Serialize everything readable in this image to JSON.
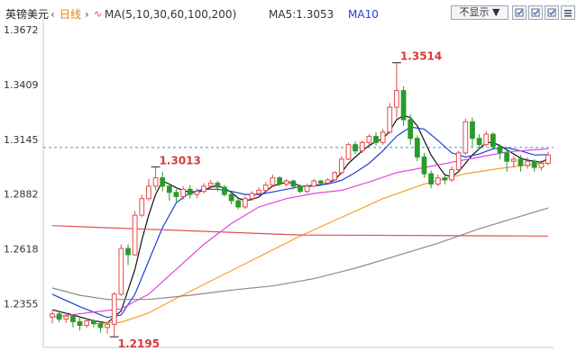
{
  "header": {
    "symbol": "英镑美元",
    "period": "日线",
    "ma_label": "MA(5,10,30,60,100,200)",
    "ma5_label": "MA5:1.3053",
    "ma10_label": "MA10",
    "display_toggle": "不显示",
    "colors": {
      "symbol": "#222222",
      "period": "#f08000",
      "ma": "#333333",
      "ma5": "#333333",
      "ma10": "#1f3fd6"
    },
    "icons": [
      "dropdown-arrow-icon",
      "checkbox-icon",
      "checkbox-icon",
      "checkbox-icon",
      "menu-icon"
    ]
  },
  "chart_data": {
    "type": "candlestick",
    "y_ticks": [
      "1.3672",
      "1.3409",
      "1.3145",
      "1.2882",
      "1.2618",
      "1.2355"
    ],
    "ylim": [
      1.2144,
      1.3738
    ],
    "reference_line": 1.3106,
    "annotations": [
      {
        "text": "1.3514",
        "value": 1.3514,
        "index": 50,
        "kind": "high"
      },
      {
        "text": "1.3013",
        "value": 1.3013,
        "index": 15,
        "kind": "high"
      },
      {
        "text": "1.2195",
        "value": 1.2195,
        "index": 9,
        "kind": "low"
      }
    ],
    "colors": {
      "up": "#e34b4b",
      "down": "#2a9a2a",
      "ref": "#4b8fe0",
      "annotation": "#d93a3a"
    },
    "candles": [
      [
        1.229,
        1.2305,
        1.226,
        1.232
      ],
      [
        1.2305,
        1.228,
        1.2265,
        1.2318
      ],
      [
        1.228,
        1.2295,
        1.2262,
        1.231
      ],
      [
        1.2295,
        1.2268,
        1.224,
        1.2305
      ],
      [
        1.2268,
        1.225,
        1.2225,
        1.229
      ],
      [
        1.225,
        1.2272,
        1.2238,
        1.2285
      ],
      [
        1.2272,
        1.2258,
        1.224,
        1.228
      ],
      [
        1.2258,
        1.224,
        1.2215,
        1.227
      ],
      [
        1.224,
        1.2255,
        1.221,
        1.2265
      ],
      [
        1.2255,
        1.24,
        1.2195,
        1.241
      ],
      [
        1.24,
        1.262,
        1.2392,
        1.264
      ],
      [
        1.262,
        1.259,
        1.254,
        1.264
      ],
      [
        1.259,
        1.278,
        1.2585,
        1.28
      ],
      [
        1.278,
        1.286,
        1.277,
        1.288
      ],
      [
        1.286,
        1.292,
        1.285,
        1.2955
      ],
      [
        1.292,
        1.296,
        1.29,
        1.3013
      ],
      [
        1.296,
        1.292,
        1.2895,
        1.299
      ],
      [
        1.292,
        1.289,
        1.285,
        1.293
      ],
      [
        1.289,
        1.287,
        1.2845,
        1.2905
      ],
      [
        1.287,
        1.2905,
        1.2855,
        1.292
      ],
      [
        1.2905,
        1.288,
        1.286,
        1.2925
      ],
      [
        1.288,
        1.2895,
        1.2862,
        1.291
      ],
      [
        1.2895,
        1.292,
        1.2885,
        1.2935
      ],
      [
        1.292,
        1.2935,
        1.2905,
        1.295
      ],
      [
        1.2935,
        1.2915,
        1.2895,
        1.2945
      ],
      [
        1.2915,
        1.288,
        1.287,
        1.2925
      ],
      [
        1.288,
        1.285,
        1.2832,
        1.2895
      ],
      [
        1.285,
        1.282,
        1.2808,
        1.2862
      ],
      [
        1.282,
        1.286,
        1.281,
        1.2872
      ],
      [
        1.286,
        1.2885,
        1.285,
        1.2895
      ],
      [
        1.2885,
        1.29,
        1.287,
        1.2915
      ],
      [
        1.29,
        1.2925,
        1.289,
        1.294
      ],
      [
        1.2925,
        1.296,
        1.2915,
        1.2975
      ],
      [
        1.296,
        1.293,
        1.292,
        1.2968
      ],
      [
        1.293,
        1.2945,
        1.2918,
        1.2955
      ],
      [
        1.2945,
        1.292,
        1.2905,
        1.2952
      ],
      [
        1.292,
        1.2895,
        1.2885,
        1.2928
      ],
      [
        1.2895,
        1.292,
        1.2885,
        1.2932
      ],
      [
        1.292,
        1.2945,
        1.2915,
        1.2955
      ],
      [
        1.2945,
        1.2935,
        1.2925,
        1.295
      ],
      [
        1.2935,
        1.295,
        1.2928,
        1.2958
      ],
      [
        1.295,
        1.2985,
        1.2945,
        1.2992
      ],
      [
        1.2985,
        1.305,
        1.2978,
        1.3065
      ],
      [
        1.305,
        1.312,
        1.3045,
        1.313
      ],
      [
        1.312,
        1.309,
        1.3075,
        1.3135
      ],
      [
        1.309,
        1.313,
        1.308,
        1.314
      ],
      [
        1.313,
        1.316,
        1.312,
        1.317
      ],
      [
        1.316,
        1.313,
        1.3115,
        1.318
      ],
      [
        1.313,
        1.318,
        1.312,
        1.3195
      ],
      [
        1.318,
        1.33,
        1.317,
        1.332
      ],
      [
        1.33,
        1.338,
        1.325,
        1.3514
      ],
      [
        1.338,
        1.324,
        1.321,
        1.34
      ],
      [
        1.324,
        1.315,
        1.312,
        1.3265
      ],
      [
        1.315,
        1.306,
        1.304,
        1.3165
      ],
      [
        1.306,
        1.298,
        1.296,
        1.308
      ],
      [
        1.298,
        1.293,
        1.291,
        1.2995
      ],
      [
        1.293,
        1.296,
        1.292,
        1.2975
      ],
      [
        1.296,
        1.295,
        1.293,
        1.297
      ],
      [
        1.295,
        1.3,
        1.294,
        1.3015
      ],
      [
        1.3,
        1.308,
        1.2995,
        1.309
      ],
      [
        1.308,
        1.323,
        1.307,
        1.3245
      ],
      [
        1.323,
        1.315,
        1.311,
        1.325
      ],
      [
        1.315,
        1.312,
        1.3095,
        1.317
      ],
      [
        1.312,
        1.317,
        1.311,
        1.3185
      ],
      [
        1.317,
        1.311,
        1.3095,
        1.318
      ],
      [
        1.311,
        1.308,
        1.305,
        1.312
      ],
      [
        1.308,
        1.304,
        1.299,
        1.309
      ],
      [
        1.304,
        1.305,
        1.301,
        1.3065
      ],
      [
        1.305,
        1.302,
        1.299,
        1.307
      ],
      [
        1.302,
        1.304,
        1.3005,
        1.306
      ],
      [
        1.304,
        1.301,
        1.299,
        1.305
      ],
      [
        1.301,
        1.303,
        1.2995,
        1.3045
      ],
      [
        1.303,
        1.307,
        1.302,
        1.3085
      ]
    ],
    "ma_lines": [
      {
        "name": "MA5",
        "color": "#111111",
        "points": [
          [
            0,
            1.2325
          ],
          [
            3,
            1.23
          ],
          [
            6,
            1.2272
          ],
          [
            8,
            1.2262
          ],
          [
            10,
            1.232
          ],
          [
            12,
            1.252
          ],
          [
            13,
            1.266
          ],
          [
            14,
            1.278
          ],
          [
            15,
            1.288
          ],
          [
            16,
            1.2945
          ],
          [
            17,
            1.293
          ],
          [
            18,
            1.2912
          ],
          [
            19,
            1.29
          ],
          [
            20,
            1.289
          ],
          [
            21,
            1.289
          ],
          [
            22,
            1.29
          ],
          [
            23,
            1.2915
          ],
          [
            24,
            1.2923
          ],
          [
            25,
            1.291
          ],
          [
            26,
            1.289
          ],
          [
            27,
            1.2862
          ],
          [
            28,
            1.285
          ],
          [
            29,
            1.2856
          ],
          [
            30,
            1.2868
          ],
          [
            31,
            1.2895
          ],
          [
            32,
            1.292
          ],
          [
            33,
            1.293
          ],
          [
            34,
            1.294
          ],
          [
            35,
            1.2935
          ],
          [
            36,
            1.292
          ],
          [
            37,
            1.2918
          ],
          [
            38,
            1.2922
          ],
          [
            39,
            1.2925
          ],
          [
            40,
            1.2935
          ],
          [
            41,
            1.295
          ],
          [
            42,
            1.2985
          ],
          [
            43,
            1.303
          ],
          [
            44,
            1.306
          ],
          [
            45,
            1.309
          ],
          [
            46,
            1.3115
          ],
          [
            47,
            1.3135
          ],
          [
            48,
            1.3148
          ],
          [
            49,
            1.3185
          ],
          [
            50,
            1.324
          ],
          [
            51,
            1.326
          ],
          [
            52,
            1.325
          ],
          [
            53,
            1.321
          ],
          [
            54,
            1.314
          ],
          [
            55,
            1.307
          ],
          [
            56,
            1.302
          ],
          [
            57,
            1.2975
          ],
          [
            58,
            1.2965
          ],
          [
            59,
            1.299
          ],
          [
            60,
            1.303
          ],
          [
            61,
            1.307
          ],
          [
            62,
            1.31
          ],
          [
            63,
            1.313
          ],
          [
            64,
            1.313
          ],
          [
            65,
            1.3115
          ],
          [
            66,
            1.3095
          ],
          [
            67,
            1.3075
          ],
          [
            68,
            1.3055
          ],
          [
            69,
            1.3045
          ],
          [
            70,
            1.304
          ],
          [
            71,
            1.3035
          ],
          [
            72,
            1.3053
          ]
        ]
      },
      {
        "name": "MA10",
        "color": "#1f3fd6",
        "points": [
          [
            0,
            1.24
          ],
          [
            4,
            1.234
          ],
          [
            8,
            1.2288
          ],
          [
            10,
            1.23
          ],
          [
            12,
            1.24
          ],
          [
            14,
            1.256
          ],
          [
            16,
            1.272
          ],
          [
            18,
            1.284
          ],
          [
            20,
            1.289
          ],
          [
            22,
            1.2905
          ],
          [
            24,
            1.2905
          ],
          [
            26,
            1.2895
          ],
          [
            28,
            1.288
          ],
          [
            30,
            1.288
          ],
          [
            32,
            1.2892
          ],
          [
            34,
            1.2905
          ],
          [
            36,
            1.2918
          ],
          [
            38,
            1.2925
          ],
          [
            40,
            1.293
          ],
          [
            42,
            1.2948
          ],
          [
            44,
            1.2985
          ],
          [
            46,
            1.303
          ],
          [
            48,
            1.309
          ],
          [
            50,
            1.316
          ],
          [
            52,
            1.3205
          ],
          [
            54,
            1.3195
          ],
          [
            56,
            1.314
          ],
          [
            58,
            1.308
          ],
          [
            60,
            1.306
          ],
          [
            62,
            1.3075
          ],
          [
            64,
            1.31
          ],
          [
            66,
            1.3105
          ],
          [
            68,
            1.309
          ],
          [
            70,
            1.307
          ],
          [
            72,
            1.3072
          ]
        ]
      },
      {
        "name": "MA30",
        "color": "#e044e0",
        "points": [
          [
            0,
            1.229
          ],
          [
            10,
            1.233
          ],
          [
            14,
            1.24
          ],
          [
            18,
            1.252
          ],
          [
            22,
            1.264
          ],
          [
            26,
            1.274
          ],
          [
            30,
            1.282
          ],
          [
            34,
            1.286
          ],
          [
            38,
            1.2885
          ],
          [
            42,
            1.29
          ],
          [
            46,
            1.294
          ],
          [
            50,
            1.2985
          ],
          [
            54,
            1.301
          ],
          [
            58,
            1.3035
          ],
          [
            62,
            1.306
          ],
          [
            66,
            1.3085
          ],
          [
            70,
            1.3095
          ],
          [
            72,
            1.31
          ]
        ]
      },
      {
        "name": "MA60",
        "color": "#f5a030",
        "points": [
          [
            6,
            1.2258
          ],
          [
            10,
            1.2265
          ],
          [
            14,
            1.231
          ],
          [
            18,
            1.238
          ],
          [
            24,
            1.248
          ],
          [
            30,
            1.258
          ],
          [
            36,
            1.268
          ],
          [
            42,
            1.277
          ],
          [
            48,
            1.286
          ],
          [
            54,
            1.293
          ],
          [
            60,
            1.298
          ],
          [
            66,
            1.301
          ],
          [
            70,
            1.3025
          ],
          [
            72,
            1.3035
          ]
        ]
      },
      {
        "name": "MA100",
        "color": "#8a8a8a",
        "points": [
          [
            0,
            1.243
          ],
          [
            4,
            1.2395
          ],
          [
            8,
            1.2375
          ],
          [
            14,
            1.2375
          ],
          [
            20,
            1.2395
          ],
          [
            26,
            1.242
          ],
          [
            32,
            1.244
          ],
          [
            38,
            1.2475
          ],
          [
            44,
            1.2525
          ],
          [
            50,
            1.2585
          ],
          [
            56,
            1.2645
          ],
          [
            62,
            1.2715
          ],
          [
            68,
            1.2775
          ],
          [
            72,
            1.2815
          ]
        ]
      },
      {
        "name": "MA200",
        "color": "#e05050",
        "points": [
          [
            0,
            1.273
          ],
          [
            36,
            1.2685
          ],
          [
            72,
            1.268
          ]
        ]
      }
    ]
  }
}
